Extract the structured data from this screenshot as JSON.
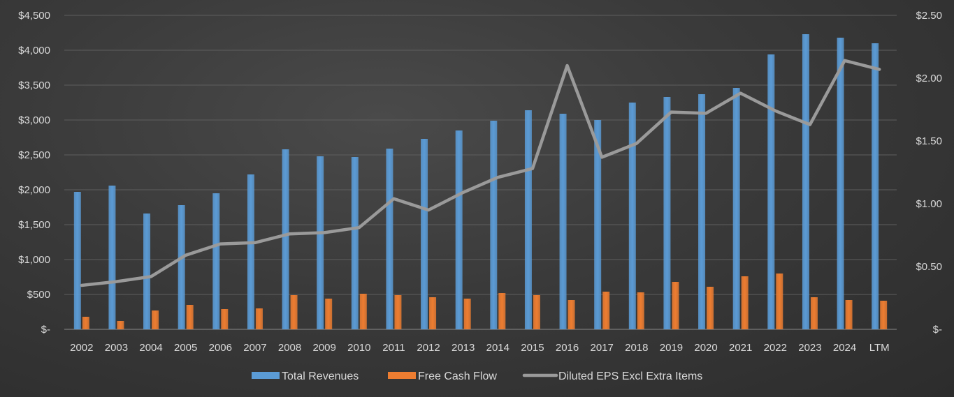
{
  "chart_data": {
    "type": "bar",
    "title": "",
    "categories": [
      "2002",
      "2003",
      "2004",
      "2005",
      "2006",
      "2007",
      "2008",
      "2009",
      "2010",
      "2011",
      "2012",
      "2013",
      "2014",
      "2015",
      "2016",
      "2017",
      "2018",
      "2019",
      "2020",
      "2021",
      "2022",
      "2023",
      "2024",
      "LTM"
    ],
    "series": [
      {
        "name": "Total Revenues",
        "type": "bar",
        "axis": "left",
        "color": "#5b9bd5",
        "values": [
          1970,
          2060,
          1660,
          1780,
          1950,
          2220,
          2580,
          2480,
          2470,
          2590,
          2730,
          2850,
          2990,
          3140,
          3090,
          3000,
          3250,
          3330,
          3370,
          3460,
          3940,
          4230,
          4180,
          4100
        ]
      },
      {
        "name": "Free Cash Flow",
        "type": "bar",
        "axis": "left",
        "color": "#ed7d31",
        "values": [
          180,
          120,
          270,
          350,
          290,
          300,
          490,
          440,
          510,
          490,
          460,
          440,
          520,
          490,
          420,
          540,
          530,
          680,
          610,
          760,
          800,
          460,
          420,
          410
        ]
      },
      {
        "name": "Diluted EPS Excl Extra Items",
        "type": "line",
        "axis": "right",
        "color": "#a5a5a5",
        "values": [
          0.35,
          0.38,
          0.42,
          0.59,
          0.68,
          0.69,
          0.76,
          0.77,
          0.81,
          1.04,
          0.95,
          1.09,
          1.21,
          1.28,
          2.1,
          1.37,
          1.48,
          1.73,
          1.72,
          1.88,
          1.74,
          1.63,
          2.14,
          2.07
        ]
      }
    ],
    "y_left": {
      "min": 0,
      "max": 4500,
      "step": 500,
      "tick_labels": [
        "$-",
        "$500",
        "$1,000",
        "$1,500",
        "$2,000",
        "$2,500",
        "$3,000",
        "$3,500",
        "$4,000",
        "$4,500"
      ]
    },
    "y_right": {
      "min": 0,
      "max": 2.5,
      "step": 0.5,
      "tick_labels": [
        "$-",
        "$0.50",
        "$1.00",
        "$1.50",
        "$2.00",
        "$2.50"
      ]
    },
    "grid": true,
    "legend_position": "bottom"
  }
}
